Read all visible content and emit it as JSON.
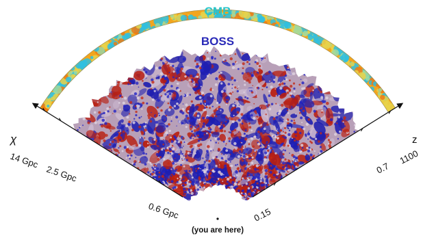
{
  "labels": {
    "cmb": "CMB",
    "boss": "BOSS",
    "observer": "(you are here)",
    "left_axis_symbol": "χ",
    "right_axis_symbol": "z"
  },
  "left_axis_ticks": [
    "14 Gpc",
    "2.5 Gpc",
    "0.6 Gpc"
  ],
  "right_axis_ticks": [
    "1100",
    "0.7",
    "0.15"
  ],
  "colors": {
    "cmb_label": "#29c4c8",
    "boss_label": "#2a2ab8",
    "overdensity": "#b81e10",
    "underdensity": "#1e1eb0",
    "mean_density": "#b8a0b8",
    "cmb_warm": "#f2a51e",
    "cmb_cool": "#2fbfe0",
    "axis": "#111111"
  }
}
